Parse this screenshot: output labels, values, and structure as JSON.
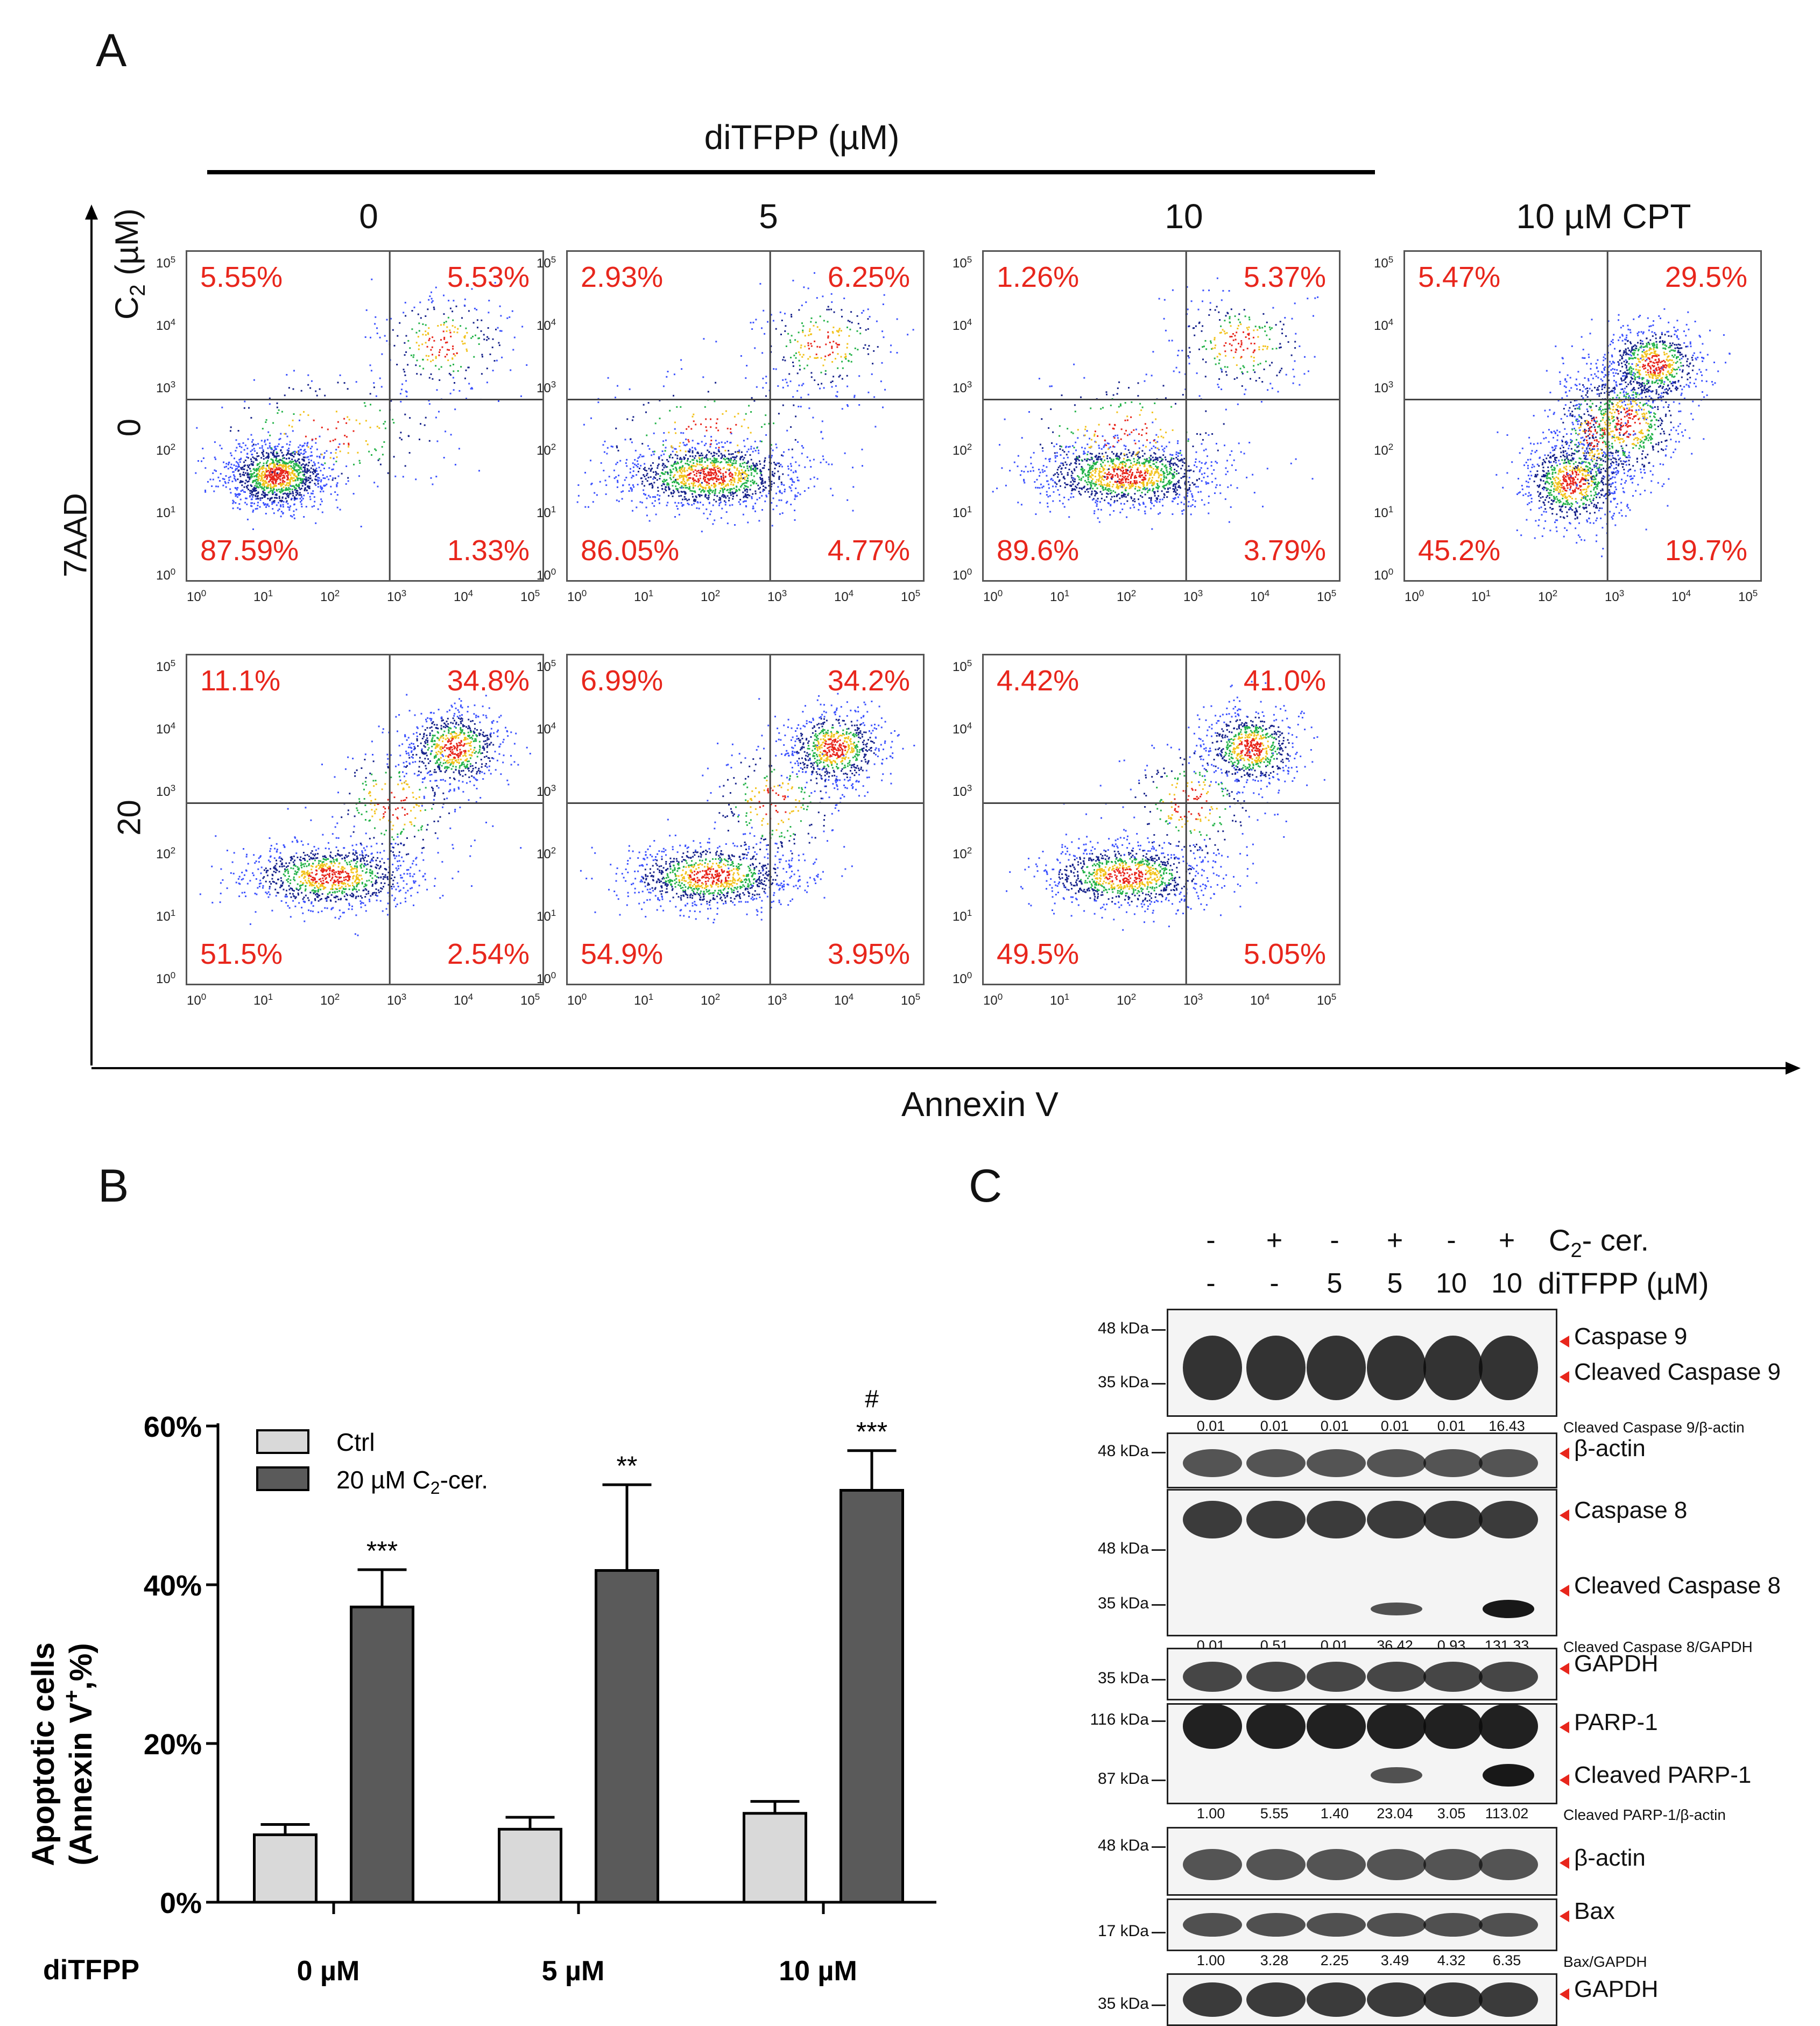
{
  "panel_a": {
    "letter": "A",
    "group_title": "diTFPP (µM)",
    "col_headers": [
      "0",
      "5",
      "10",
      "10 µM CPT"
    ],
    "c2_label": "C",
    "c2_sub": "2",
    "c2_unit": " (µM)",
    "row_labels": [
      "0",
      "20"
    ],
    "y_axis_title": "7AAD",
    "x_axis_title": "Annexin V",
    "tick_base": "10",
    "tick_exps": [
      "0",
      "1",
      "2",
      "3",
      "4",
      "5"
    ],
    "plots": [
      {
        "id": "r0c0",
        "ul": "5.55%",
        "ur": "5.53%",
        "ll": "87.59%",
        "lr": "1.33%"
      },
      {
        "id": "r0c1",
        "ul": "2.93%",
        "ur": "6.25%",
        "ll": "86.05%",
        "lr": "4.77%"
      },
      {
        "id": "r0c2",
        "ul": "1.26%",
        "ur": "5.37%",
        "ll": "89.6%",
        "lr": "3.79%"
      },
      {
        "id": "r0c3",
        "ul": "5.47%",
        "ur": "29.5%",
        "ll": "45.2%",
        "lr": "19.7%"
      },
      {
        "id": "r1c0",
        "ul": "11.1%",
        "ur": "34.8%",
        "ll": "51.5%",
        "lr": "2.54%"
      },
      {
        "id": "r1c1",
        "ul": "6.99%",
        "ur": "34.2%",
        "ll": "54.9%",
        "lr": "3.95%"
      },
      {
        "id": "r1c2",
        "ul": "4.42%",
        "ur": "41.0%",
        "ll": "49.5%",
        "lr": "5.05%"
      }
    ]
  },
  "panel_b": {
    "letter": "B",
    "xaxis_prefix": "diTFPP",
    "chart_data": {
      "type": "bar",
      "categories": [
        "0 µM",
        "5 µM",
        "10 µM"
      ],
      "series": [
        {
          "name": "Ctrl",
          "values": [
            8.5,
            9.2,
            11.2
          ],
          "errors": [
            1.3,
            1.5,
            1.5
          ],
          "color": "#d9d9d9"
        },
        {
          "name": "20 µM C2-cer.",
          "values": [
            37.2,
            41.8,
            51.9
          ],
          "errors": [
            4.7,
            10.8,
            5.0
          ],
          "color": "#5a5a5a"
        }
      ],
      "significance": [
        "***",
        "**",
        "***"
      ],
      "significance_extra": [
        "",
        "",
        "#"
      ],
      "ylabel_line1": "Apoptotic cells",
      "ylabel_line2": "(Annexin V",
      "ylabel_sup": "+",
      "ylabel_tail": ",%)",
      "ylim": [
        0,
        60
      ],
      "yticks": [
        "0%",
        "20%",
        "40%",
        "60%"
      ],
      "legend_entries": [
        "Ctrl",
        "20 µM C"
      ],
      "legend_sub": "2",
      "legend_tail": "-cer.",
      "legend_position": "top-left"
    }
  },
  "panel_c": {
    "letter": "C",
    "row1_symbols": [
      "-",
      "+",
      "-",
      "+",
      "-",
      "+"
    ],
    "row1_label": "C",
    "row1_sub": "2",
    "row1_tail": "- cer.",
    "row2_symbols": [
      "-",
      "-",
      "5",
      "5",
      "10",
      "10"
    ],
    "row2_label": "diTFPP (µM)",
    "blots": [
      {
        "kdas": [
          "48 kDa",
          "35 kDa"
        ],
        "labels": [
          "Caspase 9",
          "Cleaved Caspase 9"
        ],
        "quant": [
          "0.01",
          "0.01",
          "0.01",
          "0.01",
          "0.01",
          "16.43"
        ],
        "quant_label": "Cleaved Caspase 9/β-actin"
      },
      {
        "kdas": [
          "48 kDa"
        ],
        "labels": [
          "β-actin"
        ]
      },
      {
        "kdas": [
          "48 kDa",
          "35 kDa"
        ],
        "labels": [
          "Caspase 8",
          "Cleaved Caspase 8"
        ],
        "quant": [
          "0.01",
          "0.51",
          "0.01",
          "36.42",
          "0.93",
          "131.33"
        ],
        "quant_label": "Cleaved Caspase 8/GAPDH"
      },
      {
        "kdas": [
          "35 kDa"
        ],
        "labels": [
          "GAPDH"
        ]
      },
      {
        "kdas": [
          "116 kDa",
          "87 kDa"
        ],
        "labels": [
          "PARP-1",
          "Cleaved PARP-1"
        ],
        "quant": [
          "1.00",
          "5.55",
          "1.40",
          "23.04",
          "3.05",
          "113.02"
        ],
        "quant_label": "Cleaved PARP-1/β-actin"
      },
      {
        "kdas": [
          "48 kDa"
        ],
        "labels": [
          "β-actin"
        ]
      },
      {
        "kdas": [
          "17 kDa"
        ],
        "labels": [
          "Bax"
        ],
        "quant": [
          "1.00",
          "3.28",
          "2.25",
          "3.49",
          "4.32",
          "6.35"
        ],
        "quant_label": "Bax/GAPDH"
      },
      {
        "kdas": [
          "35 kDa"
        ],
        "labels": [
          "GAPDH"
        ]
      }
    ]
  }
}
